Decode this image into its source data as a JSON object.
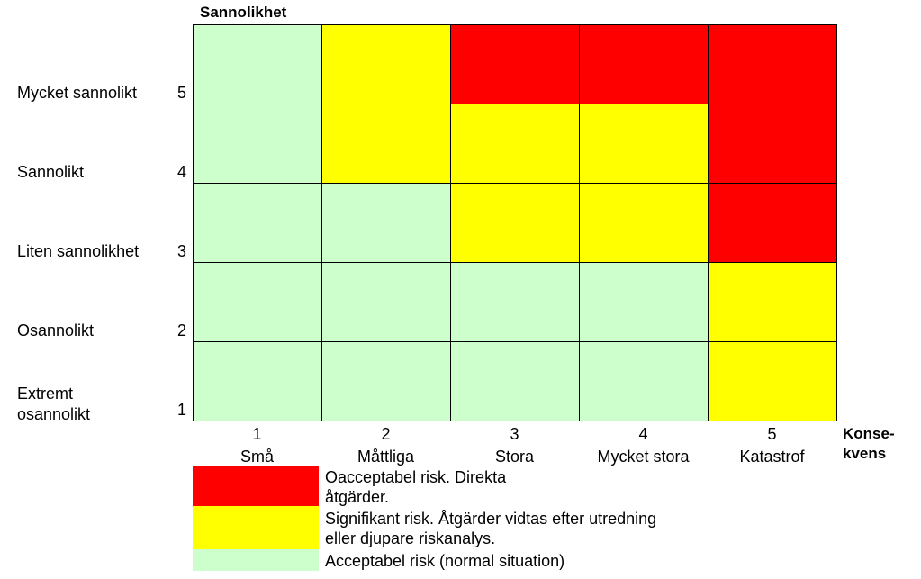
{
  "chart_data": {
    "type": "heatmap",
    "ylabel": "Sannolikhet",
    "xlabel": "Konse-\nkvens",
    "x_levels": [
      {
        "value": "1",
        "name": "Små"
      },
      {
        "value": "2",
        "name": "Måttliga"
      },
      {
        "value": "3",
        "name": "Stora"
      },
      {
        "value": "4",
        "name": "Mycket stora"
      },
      {
        "value": "5",
        "name": "Katastrof"
      }
    ],
    "y_levels": [
      {
        "value": "5",
        "name": "Mycket sannolikt"
      },
      {
        "value": "4",
        "name": "Sannolikt"
      },
      {
        "value": "3",
        "name": "Liten sannolikhet"
      },
      {
        "value": "2",
        "name": "Osannolikt"
      },
      {
        "value": "1",
        "name": "Extremt\nosannolikt"
      }
    ],
    "matrix": [
      [
        "acceptable",
        "significant",
        "unacceptable",
        "unacceptable",
        "unacceptable"
      ],
      [
        "acceptable",
        "significant",
        "significant",
        "significant",
        "unacceptable"
      ],
      [
        "acceptable",
        "acceptable",
        "significant",
        "significant",
        "unacceptable"
      ],
      [
        "acceptable",
        "acceptable",
        "acceptable",
        "acceptable",
        "significant"
      ],
      [
        "acceptable",
        "acceptable",
        "acceptable",
        "acceptable",
        "significant"
      ]
    ],
    "colors": {
      "unacceptable": "#ff0000",
      "significant": "#ffff00",
      "acceptable": "#ccffcc"
    },
    "legend": [
      {
        "level": "unacceptable",
        "text": "Oacceptabel risk. Direkta\nåtgärder."
      },
      {
        "level": "significant",
        "text": "Signifikant risk. Åtgärder vidtas efter utredning\neller djupare riskanalys."
      },
      {
        "level": "acceptable",
        "text": "Acceptabel risk (normal situation)"
      }
    ]
  }
}
